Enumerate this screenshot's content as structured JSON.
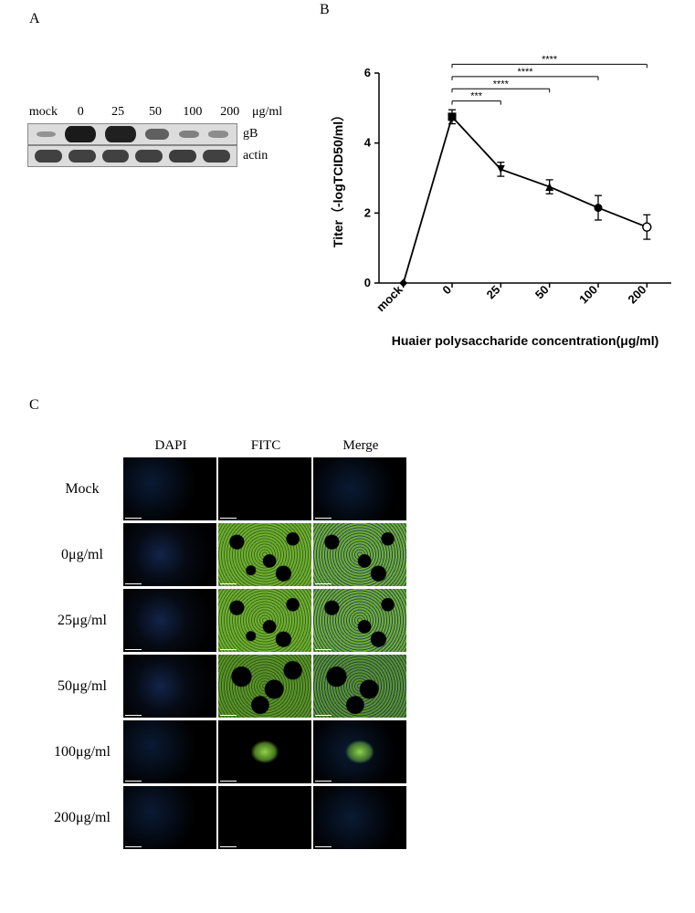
{
  "panel_labels": {
    "A": "A",
    "B": "B",
    "C": "C"
  },
  "panelA": {
    "doses": [
      "mock",
      "0",
      "25",
      "50",
      "100",
      "200"
    ],
    "unit": "μg/ml",
    "rows": [
      {
        "label": "gB",
        "intensities": [
          0.05,
          1.0,
          0.95,
          0.45,
          0.18,
          0.1
        ]
      },
      {
        "label": "actin",
        "intensities": [
          0.7,
          0.7,
          0.7,
          0.7,
          0.72,
          0.7
        ]
      }
    ],
    "band_color": "#1a1a1a",
    "strip_bg": "#dcdcdc"
  },
  "panelB": {
    "type": "line",
    "x_categories": [
      "mock",
      "0",
      "25",
      "50",
      "100",
      "200"
    ],
    "y_values": [
      0.0,
      4.75,
      3.25,
      2.75,
      2.15,
      1.6
    ],
    "y_err": [
      0.0,
      0.2,
      0.2,
      0.2,
      0.35,
      0.35
    ],
    "markers": [
      "diamond-filled",
      "square-filled",
      "triangle-down-filled",
      "triangle-up-filled",
      "circle-filled",
      "circle-open"
    ],
    "ylim": [
      0,
      6
    ],
    "ytick_step": 2,
    "ylabel": "Titer（-logTCID50/ml）",
    "xlabel": "Huaier polysaccharide concentration(μg/ml)",
    "sig_bars": [
      {
        "from": 1,
        "to": 2,
        "label": "***",
        "y": 5.2
      },
      {
        "from": 1,
        "to": 3,
        "label": "****",
        "y": 5.55
      },
      {
        "from": 1,
        "to": 4,
        "label": "****",
        "y": 5.9
      },
      {
        "from": 1,
        "to": 5,
        "label": "****",
        "y": 6.25
      }
    ],
    "line_color": "#000000",
    "axis_color": "#000000",
    "font_size_axis": 13,
    "font_size_label": 14
  },
  "panelC": {
    "col_headers": [
      "DAPI",
      "FITC",
      "Merge"
    ],
    "rows": [
      {
        "label": "Mock",
        "cells": [
          "dapi-dim",
          "fitc-off",
          "merge-off"
        ]
      },
      {
        "label": "0μg/ml",
        "cells": [
          "dapi-med",
          "fitc-hi",
          "merge-hi"
        ]
      },
      {
        "label": "25μg/ml",
        "cells": [
          "dapi-med",
          "fitc-hi",
          "merge-hi"
        ]
      },
      {
        "label": "50μg/ml",
        "cells": [
          "dapi-med",
          "fitc-med",
          "merge-med"
        ]
      },
      {
        "label": "100μg/ml",
        "cells": [
          "dapi-dim",
          "fitc-spot",
          "merge-spot"
        ]
      },
      {
        "label": "200μg/ml",
        "cells": [
          "dapi-dim",
          "fitc-off",
          "merge-off"
        ]
      }
    ]
  }
}
